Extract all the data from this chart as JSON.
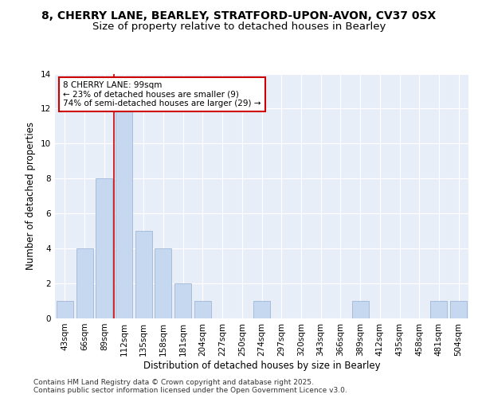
{
  "title_line1": "8, CHERRY LANE, BEARLEY, STRATFORD-UPON-AVON, CV37 0SX",
  "title_line2": "Size of property relative to detached houses in Bearley",
  "xlabel": "Distribution of detached houses by size in Bearley",
  "ylabel": "Number of detached properties",
  "categories": [
    "43sqm",
    "66sqm",
    "89sqm",
    "112sqm",
    "135sqm",
    "158sqm",
    "181sqm",
    "204sqm",
    "227sqm",
    "250sqm",
    "274sqm",
    "297sqm",
    "320sqm",
    "343sqm",
    "366sqm",
    "389sqm",
    "412sqm",
    "435sqm",
    "458sqm",
    "481sqm",
    "504sqm"
  ],
  "values": [
    1,
    4,
    8,
    12,
    5,
    4,
    2,
    1,
    0,
    0,
    1,
    0,
    0,
    0,
    0,
    1,
    0,
    0,
    0,
    1,
    1
  ],
  "bar_color": "#c5d8f0",
  "bar_edge_color": "#a0b8d8",
  "redline_x": 2.5,
  "annotation_text": "8 CHERRY LANE: 99sqm\n← 23% of detached houses are smaller (9)\n74% of semi-detached houses are larger (29) →",
  "annotation_box_color": "#ffffff",
  "annotation_box_edge_color": "#cc0000",
  "ylim": [
    0,
    14
  ],
  "yticks": [
    0,
    2,
    4,
    6,
    8,
    10,
    12,
    14
  ],
  "background_color": "#e8eef8",
  "footer_text": "Contains HM Land Registry data © Crown copyright and database right 2025.\nContains public sector information licensed under the Open Government Licence v3.0.",
  "title_fontsize": 10,
  "subtitle_fontsize": 9.5,
  "axis_label_fontsize": 8.5,
  "tick_fontsize": 7.5,
  "annotation_fontsize": 7.5,
  "footer_fontsize": 6.5
}
